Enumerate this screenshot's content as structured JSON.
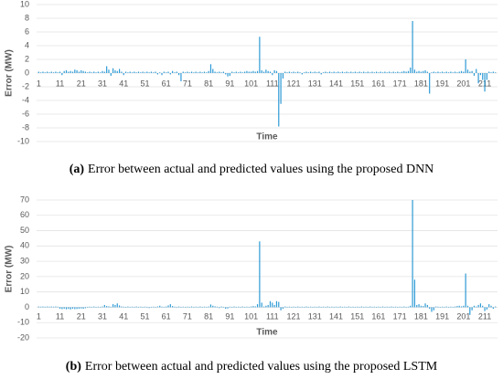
{
  "chart_data": [
    {
      "type": "bar",
      "caption_label": "(a)",
      "caption": "Error between actual and predicted values using the proposed DNN",
      "ylabel": "Error (MW)",
      "xlabel": "Time",
      "color": "#2e9bd6",
      "grid": true,
      "xlim": [
        0,
        217
      ],
      "xticks": [
        1,
        11,
        21,
        31,
        41,
        51,
        61,
        71,
        81,
        91,
        101,
        111,
        121,
        131,
        141,
        151,
        161,
        171,
        181,
        191,
        201,
        211
      ],
      "ylim": [
        -10,
        10
      ],
      "yticks": [
        -10,
        -8,
        -6,
        -4,
        -2,
        0,
        2,
        4,
        6,
        8,
        10
      ],
      "x": [
        1,
        2,
        3,
        4,
        5,
        6,
        7,
        8,
        9,
        10,
        11,
        12,
        13,
        14,
        15,
        16,
        17,
        18,
        19,
        20,
        21,
        22,
        23,
        24,
        25,
        26,
        27,
        28,
        29,
        30,
        31,
        32,
        33,
        34,
        35,
        36,
        37,
        38,
        39,
        40,
        41,
        42,
        43,
        44,
        45,
        46,
        47,
        48,
        49,
        50,
        51,
        52,
        53,
        54,
        55,
        56,
        57,
        58,
        59,
        60,
        61,
        62,
        63,
        64,
        65,
        66,
        67,
        68,
        69,
        70,
        71,
        72,
        73,
        74,
        75,
        76,
        77,
        78,
        79,
        80,
        81,
        82,
        83,
        84,
        85,
        86,
        87,
        88,
        89,
        90,
        91,
        92,
        93,
        94,
        95,
        96,
        97,
        98,
        99,
        100,
        101,
        102,
        103,
        104,
        105,
        106,
        107,
        108,
        109,
        110,
        111,
        112,
        113,
        114,
        115,
        116,
        117,
        118,
        119,
        120,
        121,
        122,
        123,
        124,
        125,
        126,
        127,
        128,
        129,
        130,
        131,
        132,
        133,
        134,
        135,
        136,
        137,
        138,
        139,
        140,
        141,
        142,
        143,
        144,
        145,
        146,
        147,
        148,
        149,
        150,
        151,
        152,
        153,
        154,
        155,
        156,
        157,
        158,
        159,
        160,
        161,
        162,
        163,
        164,
        165,
        166,
        167,
        168,
        169,
        170,
        171,
        172,
        173,
        174,
        175,
        176,
        177,
        178,
        179,
        180,
        181,
        182,
        183,
        184,
        185,
        186,
        187,
        188,
        189,
        190,
        191,
        192,
        193,
        194,
        195,
        196,
        197,
        198,
        199,
        200,
        201,
        202,
        203,
        204,
        205,
        206,
        207,
        208,
        209,
        210,
        211,
        212,
        213,
        214,
        215,
        216
      ],
      "values": [
        0.2,
        0.1,
        0.2,
        0.1,
        0.2,
        0.1,
        0.2,
        0.1,
        0.2,
        0.1,
        0.2,
        -0.3,
        0.3,
        0.4,
        0.2,
        0.3,
        0.2,
        0.5,
        0.4,
        0.2,
        0.4,
        0.3,
        0.2,
        0.1,
        0.2,
        0.1,
        0.2,
        0.1,
        0.2,
        0.1,
        0.3,
        0.2,
        1.0,
        0.5,
        -0.4,
        0.7,
        0.4,
        0.3,
        0.6,
        0.2,
        -0.3,
        0.2,
        0.1,
        0.2,
        0.1,
        0.2,
        0.1,
        0.2,
        0.1,
        0.2,
        0.1,
        0.2,
        0.1,
        0.2,
        0.1,
        0.2,
        -0.2,
        0.1,
        -0.3,
        0.2,
        0.1,
        0.2,
        -0.2,
        0.3,
        0.1,
        0.2,
        -0.3,
        -1.2,
        0.2,
        0.1,
        0.2,
        0.1,
        0.2,
        0.1,
        0.2,
        0.1,
        0.2,
        0.1,
        0.2,
        0.1,
        0.3,
        1.3,
        0.6,
        0.2,
        0.1,
        0.2,
        0.1,
        0.2,
        -0.2,
        -0.5,
        -0.4,
        0.2,
        0.1,
        0.2,
        0.1,
        0.2,
        0.1,
        0.2,
        0.3,
        0.2,
        0.2,
        0.3,
        0.2,
        0.3,
        5.3,
        0.4,
        0.2,
        0.5,
        0.3,
        0.2,
        -0.3,
        0.4,
        0.3,
        -7.8,
        -4.5,
        -0.8,
        0.2,
        0.1,
        0.2,
        0.1,
        0.2,
        0.1,
        0.2,
        0.1,
        -0.2,
        0.1,
        0.2,
        0.1,
        0.2,
        0.1,
        0.2,
        0.1,
        0.2,
        -0.2,
        0.1,
        0.2,
        0.1,
        0.2,
        0.1,
        0.2,
        0.1,
        0.2,
        0.1,
        0.2,
        0.1,
        0.2,
        0.1,
        0.2,
        0.1,
        0.2,
        0.1,
        0.2,
        0.1,
        0.2,
        0.1,
        0.2,
        0.1,
        0.2,
        0.1,
        0.2,
        0.1,
        0.2,
        0.1,
        0.2,
        0.1,
        0.2,
        0.1,
        0.2,
        0.1,
        0.2,
        0.1,
        0.2,
        0.3,
        0.2,
        0.3,
        0.8,
        7.6,
        0.5,
        0.2,
        0.3,
        0.2,
        0.3,
        0.4,
        0.2,
        -3.0,
        0.1,
        0.2,
        0.1,
        0.2,
        0.1,
        0.2,
        0.1,
        0.2,
        0.1,
        0.2,
        0.1,
        0.2,
        0.1,
        0.2,
        0.3,
        0.2,
        2.0,
        0.5,
        0.2,
        0.3,
        -0.4,
        0.6,
        -1.5,
        -0.3,
        -1.0,
        -2.7,
        -1.0,
        0.2,
        0.1,
        0.2,
        0.1
      ]
    },
    {
      "type": "bar",
      "caption_label": "(b)",
      "caption": "Error between actual and predicted values using the proposed LSTM",
      "ylabel": "Error (MW)",
      "xlabel": "Time",
      "color": "#2e9bd6",
      "grid": true,
      "xlim": [
        0,
        217
      ],
      "xticks": [
        1,
        11,
        21,
        31,
        41,
        51,
        61,
        71,
        81,
        91,
        101,
        111,
        121,
        131,
        141,
        151,
        161,
        171,
        181,
        191,
        201,
        211
      ],
      "ylim": [
        -20,
        70
      ],
      "yticks": [
        -20,
        -10,
        0,
        10,
        20,
        30,
        40,
        50,
        60,
        70
      ],
      "x": [
        1,
        2,
        3,
        4,
        5,
        6,
        7,
        8,
        9,
        10,
        11,
        12,
        13,
        14,
        15,
        16,
        17,
        18,
        19,
        20,
        21,
        22,
        23,
        24,
        25,
        26,
        27,
        28,
        29,
        30,
        31,
        32,
        33,
        34,
        35,
        36,
        37,
        38,
        39,
        40,
        41,
        42,
        43,
        44,
        45,
        46,
        47,
        48,
        49,
        50,
        51,
        52,
        53,
        54,
        55,
        56,
        57,
        58,
        59,
        60,
        61,
        62,
        63,
        64,
        65,
        66,
        67,
        68,
        69,
        70,
        71,
        72,
        73,
        74,
        75,
        76,
        77,
        78,
        79,
        80,
        81,
        82,
        83,
        84,
        85,
        86,
        87,
        88,
        89,
        90,
        91,
        92,
        93,
        94,
        95,
        96,
        97,
        98,
        99,
        100,
        101,
        102,
        103,
        104,
        105,
        106,
        107,
        108,
        109,
        110,
        111,
        112,
        113,
        114,
        115,
        116,
        117,
        118,
        119,
        120,
        121,
        122,
        123,
        124,
        125,
        126,
        127,
        128,
        129,
        130,
        131,
        132,
        133,
        134,
        135,
        136,
        137,
        138,
        139,
        140,
        141,
        142,
        143,
        144,
        145,
        146,
        147,
        148,
        149,
        150,
        151,
        152,
        153,
        154,
        155,
        156,
        157,
        158,
        159,
        160,
        161,
        162,
        163,
        164,
        165,
        166,
        167,
        168,
        169,
        170,
        171,
        172,
        173,
        174,
        175,
        176,
        177,
        178,
        179,
        180,
        181,
        182,
        183,
        184,
        185,
        186,
        187,
        188,
        189,
        190,
        191,
        192,
        193,
        194,
        195,
        196,
        197,
        198,
        199,
        200,
        201,
        202,
        203,
        204,
        205,
        206,
        207,
        208,
        209,
        210,
        211,
        212,
        213,
        214,
        215,
        216
      ],
      "values": [
        0.5,
        0.4,
        0.5,
        0.4,
        0.5,
        0.4,
        0.5,
        0.4,
        0.5,
        0.4,
        -1.0,
        -1.2,
        -1.0,
        -1.3,
        -1.1,
        -1.4,
        -1.0,
        -1.2,
        -1.1,
        -1.0,
        -0.8,
        -1.0,
        -0.6,
        0.3,
        0.4,
        0.3,
        0.5,
        0.3,
        0.4,
        0.3,
        0.5,
        1.5,
        0.8,
        0.6,
        0.4,
        2.0,
        1.5,
        2.5,
        1.2,
        0.5,
        0.4,
        0.3,
        0.5,
        0.3,
        0.4,
        0.3,
        0.5,
        0.3,
        0.4,
        0.3,
        0.4,
        0.3,
        -0.5,
        0.3,
        0.4,
        0.3,
        0.5,
        1.0,
        0.4,
        0.3,
        0.5,
        1.2,
        2.0,
        0.8,
        0.4,
        0.3,
        0.5,
        0.3,
        0.4,
        0.3,
        0.4,
        0.3,
        0.5,
        0.3,
        0.4,
        0.3,
        0.5,
        0.3,
        0.4,
        0.3,
        0.5,
        1.8,
        1.0,
        0.6,
        0.4,
        -0.5,
        0.5,
        0.3,
        -1.0,
        -0.8,
        0.4,
        0.3,
        0.5,
        0.3,
        0.4,
        0.3,
        0.5,
        0.3,
        0.4,
        0.3,
        0.5,
        0.8,
        0.6,
        2.0,
        43,
        3.0,
        0.5,
        1.0,
        1.5,
        4.0,
        3.0,
        1.5,
        4.0,
        3.5,
        -2.0,
        -1.0,
        0.5,
        0.3,
        0.4,
        0.3,
        0.4,
        0.3,
        0.5,
        0.3,
        0.4,
        0.3,
        0.5,
        0.3,
        0.4,
        0.3,
        0.4,
        0.3,
        0.5,
        0.3,
        0.4,
        0.3,
        0.5,
        0.3,
        0.4,
        0.3,
        0.4,
        0.3,
        0.5,
        0.3,
        0.4,
        0.3,
        0.5,
        0.3,
        0.4,
        0.3,
        0.4,
        0.3,
        0.5,
        0.3,
        0.4,
        0.3,
        0.5,
        0.3,
        0.4,
        0.3,
        0.4,
        0.3,
        0.5,
        0.3,
        0.4,
        0.3,
        0.5,
        0.3,
        0.4,
        0.3,
        0.4,
        0.3,
        0.5,
        0.3,
        0.4,
        1.0,
        70,
        18,
        1.5,
        2.0,
        1.0,
        0.8,
        2.5,
        1.5,
        -1.0,
        -3.0,
        -2.0,
        0.5,
        0.4,
        0.3,
        0.4,
        0.3,
        0.5,
        0.3,
        0.4,
        0.3,
        0.5,
        0.8,
        1.0,
        0.6,
        1.0,
        22,
        1.0,
        -5.0,
        -2.0,
        1.0,
        0.5,
        1.5,
        2.5,
        1.0,
        -2.5,
        -1.5,
        2.0,
        1.0,
        -1.0,
        0.5
      ]
    }
  ]
}
